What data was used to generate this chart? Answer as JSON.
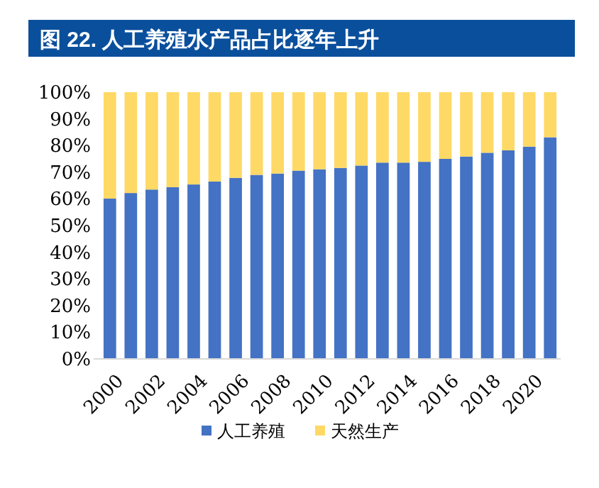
{
  "chart_data": {
    "type": "bar",
    "stacked": true,
    "title": "图 22. 人工养殖水产品占比逐年上升",
    "categories": [
      "2000",
      null,
      "2002",
      null,
      "2004",
      null,
      "2006",
      null,
      "2008",
      null,
      "2010",
      null,
      "2012",
      null,
      "2014",
      null,
      "2016",
      null,
      "2018",
      null,
      "2020",
      null
    ],
    "series": [
      {
        "name": "人工养殖",
        "color": "#4472c4",
        "values": [
          60.1,
          62.2,
          63.5,
          64.4,
          65.4,
          66.5,
          67.9,
          69.0,
          69.5,
          70.6,
          71.1,
          71.6,
          72.5,
          73.6,
          73.6,
          73.9,
          75.0,
          75.9,
          77.3,
          78.2,
          79.6,
          83.1
        ]
      },
      {
        "name": "天然生产",
        "color": "#ffd966",
        "values": [
          39.9,
          37.8,
          36.5,
          35.6,
          34.6,
          33.5,
          32.1,
          31.0,
          30.5,
          29.4,
          28.9,
          28.4,
          27.5,
          26.4,
          26.4,
          26.1,
          25.0,
          24.1,
          22.7,
          21.8,
          20.4,
          16.9
        ]
      }
    ],
    "ylim": [
      0,
      100
    ],
    "yticks": [
      {
        "value": 0,
        "label": "0%"
      },
      {
        "value": 10,
        "label": "10%"
      },
      {
        "value": 20,
        "label": "20%"
      },
      {
        "value": 30,
        "label": "30%"
      },
      {
        "value": 40,
        "label": "40%"
      },
      {
        "value": 50,
        "label": "50%"
      },
      {
        "value": 60,
        "label": "60%"
      },
      {
        "value": 70,
        "label": "70%"
      },
      {
        "value": 80,
        "label": "80%"
      },
      {
        "value": 90,
        "label": "90%"
      },
      {
        "value": 100,
        "label": "100%"
      }
    ],
    "grid": false,
    "legend": "bottom"
  }
}
